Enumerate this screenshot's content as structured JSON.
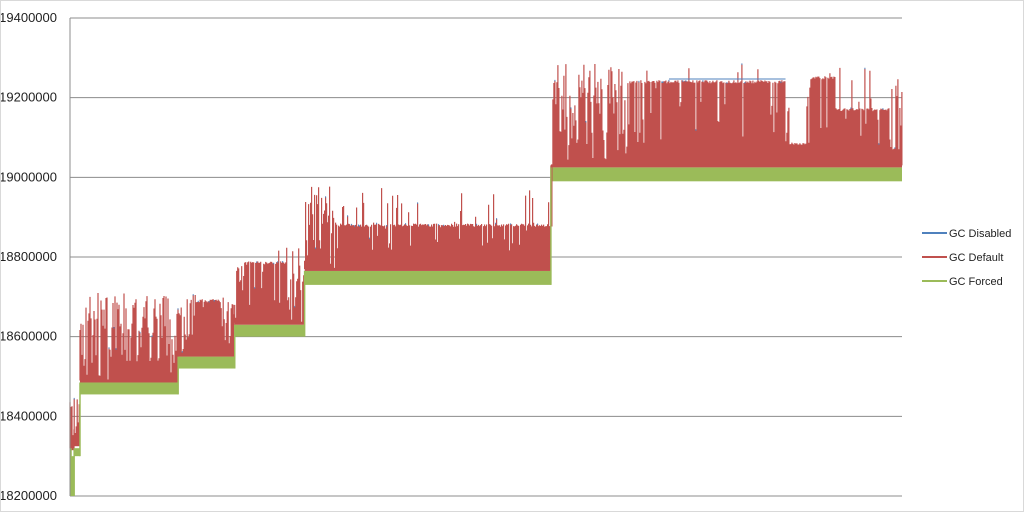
{
  "chart_data": {
    "type": "line",
    "title": "",
    "xlabel": "",
    "ylabel": "",
    "ylim": [
      18200000,
      19400000
    ],
    "yticks": [
      18200000,
      18400000,
      18600000,
      18800000,
      19000000,
      19200000,
      19400000
    ],
    "ytick_labels": [
      "18200000",
      "18400000",
      "18600000",
      "18800000",
      "19000000",
      "19200000",
      "19400000"
    ],
    "grid": true,
    "legend_position": "right",
    "colors": {
      "GC Disabled": "#4f81bd",
      "GC Default": "#c0504d",
      "GC Forced": "#9bbb59"
    },
    "series": [
      {
        "name": "GC Disabled",
        "note_values": "approximately follows the upper envelope of GC Default",
        "values": [
          18200000,
          18440000,
          18480000,
          18650000,
          18700000,
          18700000,
          18690000,
          18800000,
          18780000,
          18910000,
          18980000,
          18900000,
          18880000,
          18940000,
          19240000,
          19230000,
          19180000,
          19250000,
          19260000,
          19250000,
          19080000,
          19260000,
          19170000,
          19290000
        ]
      },
      {
        "name": "GC Default",
        "values": [
          18200000,
          18440000,
          18480000,
          18650000,
          18710000,
          18700000,
          18690000,
          18800000,
          18780000,
          18910000,
          18980000,
          18900000,
          18880000,
          18940000,
          19240000,
          19230000,
          19180000,
          19240000,
          19240000,
          19240000,
          19080000,
          19260000,
          19170000,
          19290000
        ]
      },
      {
        "name": "GC Forced",
        "values": [
          18200000,
          18300000,
          18460000,
          18460000,
          18460000,
          18460000,
          18520000,
          18600000,
          18600000,
          18730000,
          18730000,
          18730000,
          18730000,
          18730000,
          18990000,
          18990000,
          18990000,
          18990000,
          18990000,
          18990000,
          18990000,
          18990000,
          18990000,
          18990000
        ]
      }
    ],
    "bands": [
      {
        "from": 0.0,
        "to": 0.005,
        "floor": 18200000,
        "forced_top": 18300000,
        "default_base": 18320000,
        "default_peak": 18440000
      },
      {
        "from": 0.005,
        "to": 0.012,
        "floor": 18300000,
        "forced_top": 18320000,
        "default_base": 18330000,
        "default_peak": 18480000
      },
      {
        "from": 0.012,
        "to": 0.13,
        "floor": 18455000,
        "forced_top": 18485000,
        "default_base": 18490000,
        "default_peak": 18710000
      },
      {
        "from": 0.13,
        "to": 0.198,
        "floor": 18520000,
        "forced_top": 18550000,
        "default_base": 18555000,
        "default_peak": 18710000
      },
      {
        "from": 0.198,
        "to": 0.282,
        "floor": 18600000,
        "forced_top": 18630000,
        "default_base": 18635000,
        "default_peak": 18830000
      },
      {
        "from": 0.282,
        "to": 0.578,
        "floor": 18730000,
        "forced_top": 18765000,
        "default_base": 18770000,
        "default_peak": 18980000
      },
      {
        "from": 0.578,
        "to": 1.0,
        "floor": 18990000,
        "forced_top": 19025000,
        "default_base": 19030000,
        "default_peak": 19290000
      }
    ],
    "plateaus": [
      {
        "from": 0.67,
        "to": 0.86,
        "level": 19240000
      },
      {
        "from": 0.865,
        "to": 0.89,
        "level": 19085000
      },
      {
        "from": 0.89,
        "to": 0.92,
        "level": 19250000
      },
      {
        "from": 0.92,
        "to": 0.985,
        "level": 19170000
      },
      {
        "from": 0.32,
        "to": 0.58,
        "level": 18880000
      },
      {
        "from": 0.21,
        "to": 0.26,
        "level": 18785000
      },
      {
        "from": 0.15,
        "to": 0.18,
        "level": 18690000
      }
    ]
  },
  "legend": [
    {
      "label": "GC Disabled",
      "color": "#4f81bd"
    },
    {
      "label": "GC Default",
      "color": "#c0504d"
    },
    {
      "label": "GC Forced",
      "color": "#9bbb59"
    }
  ]
}
